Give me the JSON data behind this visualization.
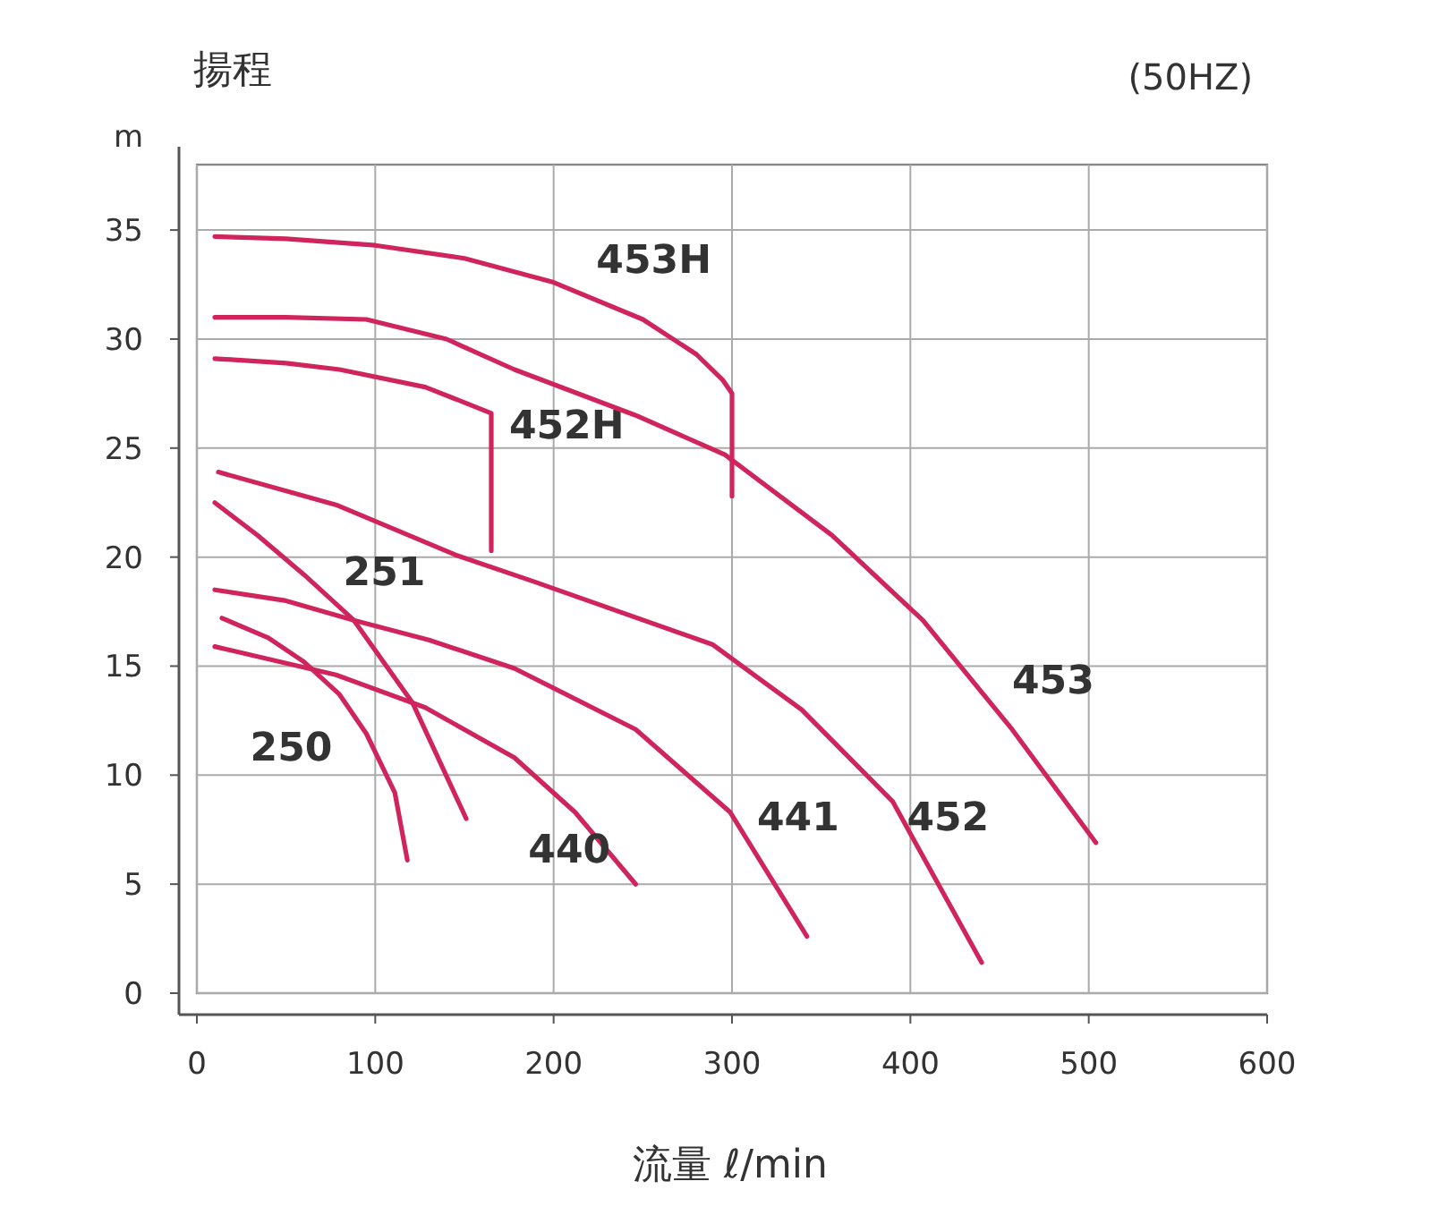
{
  "chart_data": {
    "type": "line",
    "subtitle": "(50HZ)",
    "ylabel": "揚程",
    "xlabel": "流量 ℓ/min",
    "annotations": [
      "m"
    ],
    "xlim": [
      0,
      600
    ],
    "ylim": [
      0,
      38
    ],
    "xticks": [
      0,
      100,
      200,
      300,
      400,
      500,
      600
    ],
    "yticks": [
      0,
      5,
      10,
      15,
      20,
      25,
      30,
      35
    ],
    "grid": true,
    "series": [
      {
        "name": "453H",
        "color": "#d0245c",
        "x": [
          10,
          50,
          100,
          150,
          200,
          250,
          280,
          295,
          300,
          300
        ],
        "values": [
          34.7,
          34.6,
          34.3,
          33.7,
          32.6,
          30.9,
          29.3,
          28.1,
          27.5,
          22.8
        ]
      },
      {
        "name": "452H",
        "color": "#d0245c",
        "x": [
          10,
          50,
          80,
          128,
          165,
          165
        ],
        "values": [
          29.1,
          28.9,
          28.6,
          27.8,
          26.6,
          20.3
        ]
      },
      {
        "name": "251",
        "color": "#d0245c",
        "x": [
          10,
          34,
          60,
          88,
          121,
          151
        ],
        "values": [
          22.5,
          21.0,
          19.2,
          17.1,
          13.3,
          8.0
        ]
      },
      {
        "name": "250",
        "color": "#d0245c",
        "x": [
          14,
          40,
          60,
          80,
          95,
          111,
          118
        ],
        "values": [
          17.2,
          16.3,
          15.2,
          13.7,
          11.9,
          9.2,
          6.1
        ]
      },
      {
        "name": "441",
        "color": "#d0245c",
        "x": [
          10,
          50,
          88,
          130,
          178,
          246,
          299,
          342
        ],
        "values": [
          18.5,
          18.0,
          17.1,
          16.2,
          14.9,
          12.1,
          8.3,
          2.6
        ]
      },
      {
        "name": "440",
        "color": "#d0245c",
        "x": [
          10,
          78,
          128,
          178,
          212,
          246
        ],
        "values": [
          15.9,
          14.6,
          13.1,
          10.8,
          8.3,
          5.0
        ]
      },
      {
        "name": "452",
        "color": "#d0245c",
        "x": [
          12,
          78,
          145,
          188,
          289,
          339,
          390,
          440
        ],
        "values": [
          23.9,
          22.4,
          20.1,
          18.9,
          16.0,
          13.0,
          8.8,
          1.4
        ]
      },
      {
        "name": "453",
        "color": "#d0245c",
        "x": [
          10,
          50,
          95,
          140,
          178,
          246,
          296,
          356,
          407,
          457,
          504
        ],
        "values": [
          31.0,
          31.0,
          30.9,
          30.0,
          28.6,
          26.5,
          24.7,
          21.0,
          17.1,
          12.1,
          6.9
        ]
      }
    ]
  }
}
